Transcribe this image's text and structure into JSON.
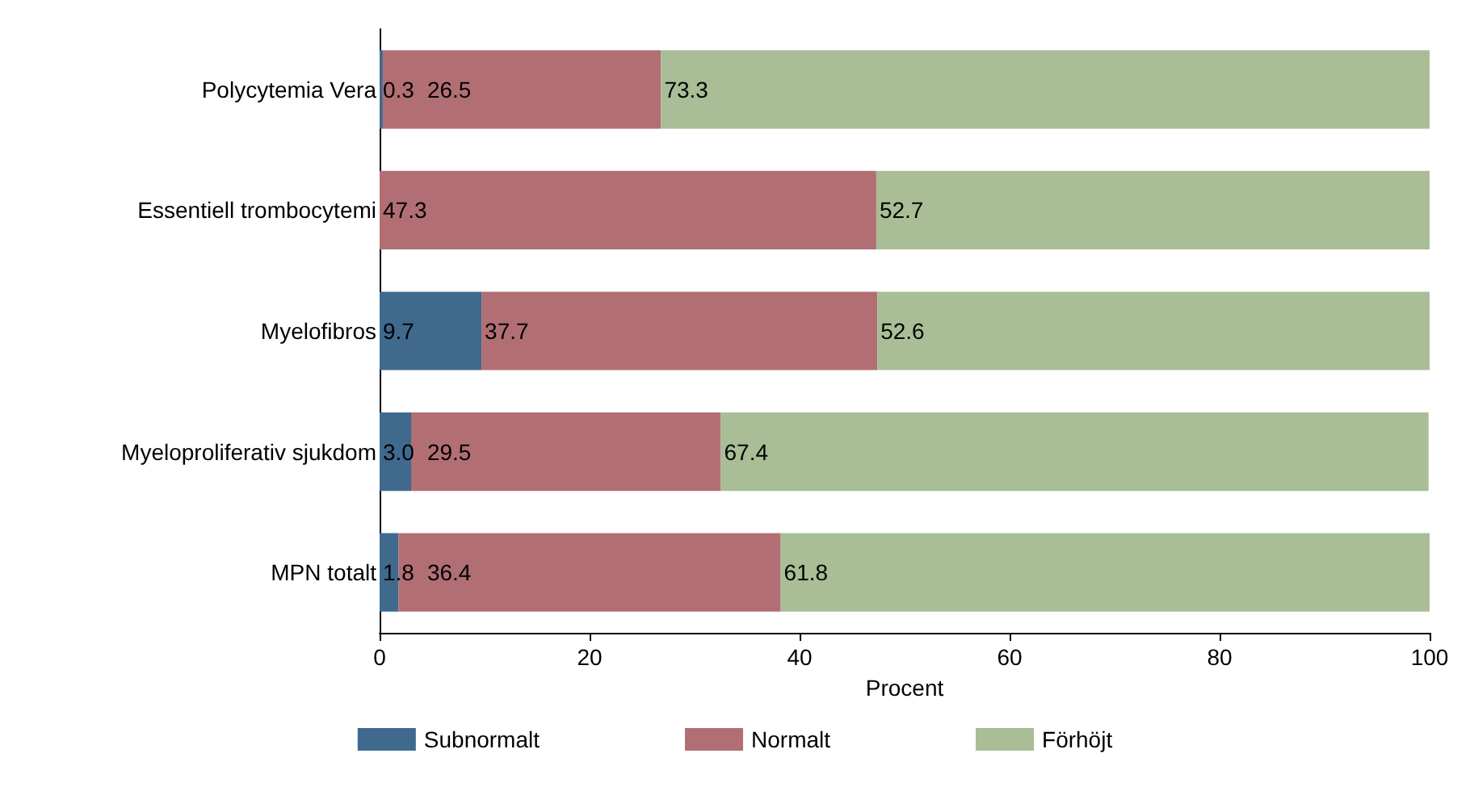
{
  "chart_data": {
    "type": "bar",
    "orientation": "horizontal",
    "stacked": true,
    "xlabel": "Procent",
    "categories": [
      "Polycytemia Vera",
      "Essentiell trombocytemi",
      "Myelofibros",
      "Myeloproliferativ sjukdom",
      "MPN totalt"
    ],
    "series": [
      {
        "name": "Subnormalt",
        "color": "#40698e",
        "values": [
          0.3,
          0,
          9.7,
          3.0,
          1.8
        ],
        "value_labels": [
          "0.3",
          null,
          "9.7",
          "3.0",
          "1.8"
        ]
      },
      {
        "name": "Normalt",
        "color": "#b16f74",
        "values": [
          26.5,
          47.3,
          37.7,
          29.5,
          36.4
        ],
        "value_labels": [
          "26.5",
          "47.3",
          "37.7",
          "29.5",
          "36.4"
        ]
      },
      {
        "name": "Förhöjt",
        "color": "#a9bd96",
        "values": [
          73.3,
          52.7,
          52.6,
          67.4,
          61.8
        ],
        "value_labels": [
          "73.3",
          "52.7",
          "52.6",
          "67.4",
          "61.8"
        ]
      }
    ],
    "xlim": [
      0,
      100
    ],
    "xticks": [
      0,
      20,
      40,
      60,
      80,
      100
    ],
    "grid": false,
    "legend": "bottom"
  }
}
